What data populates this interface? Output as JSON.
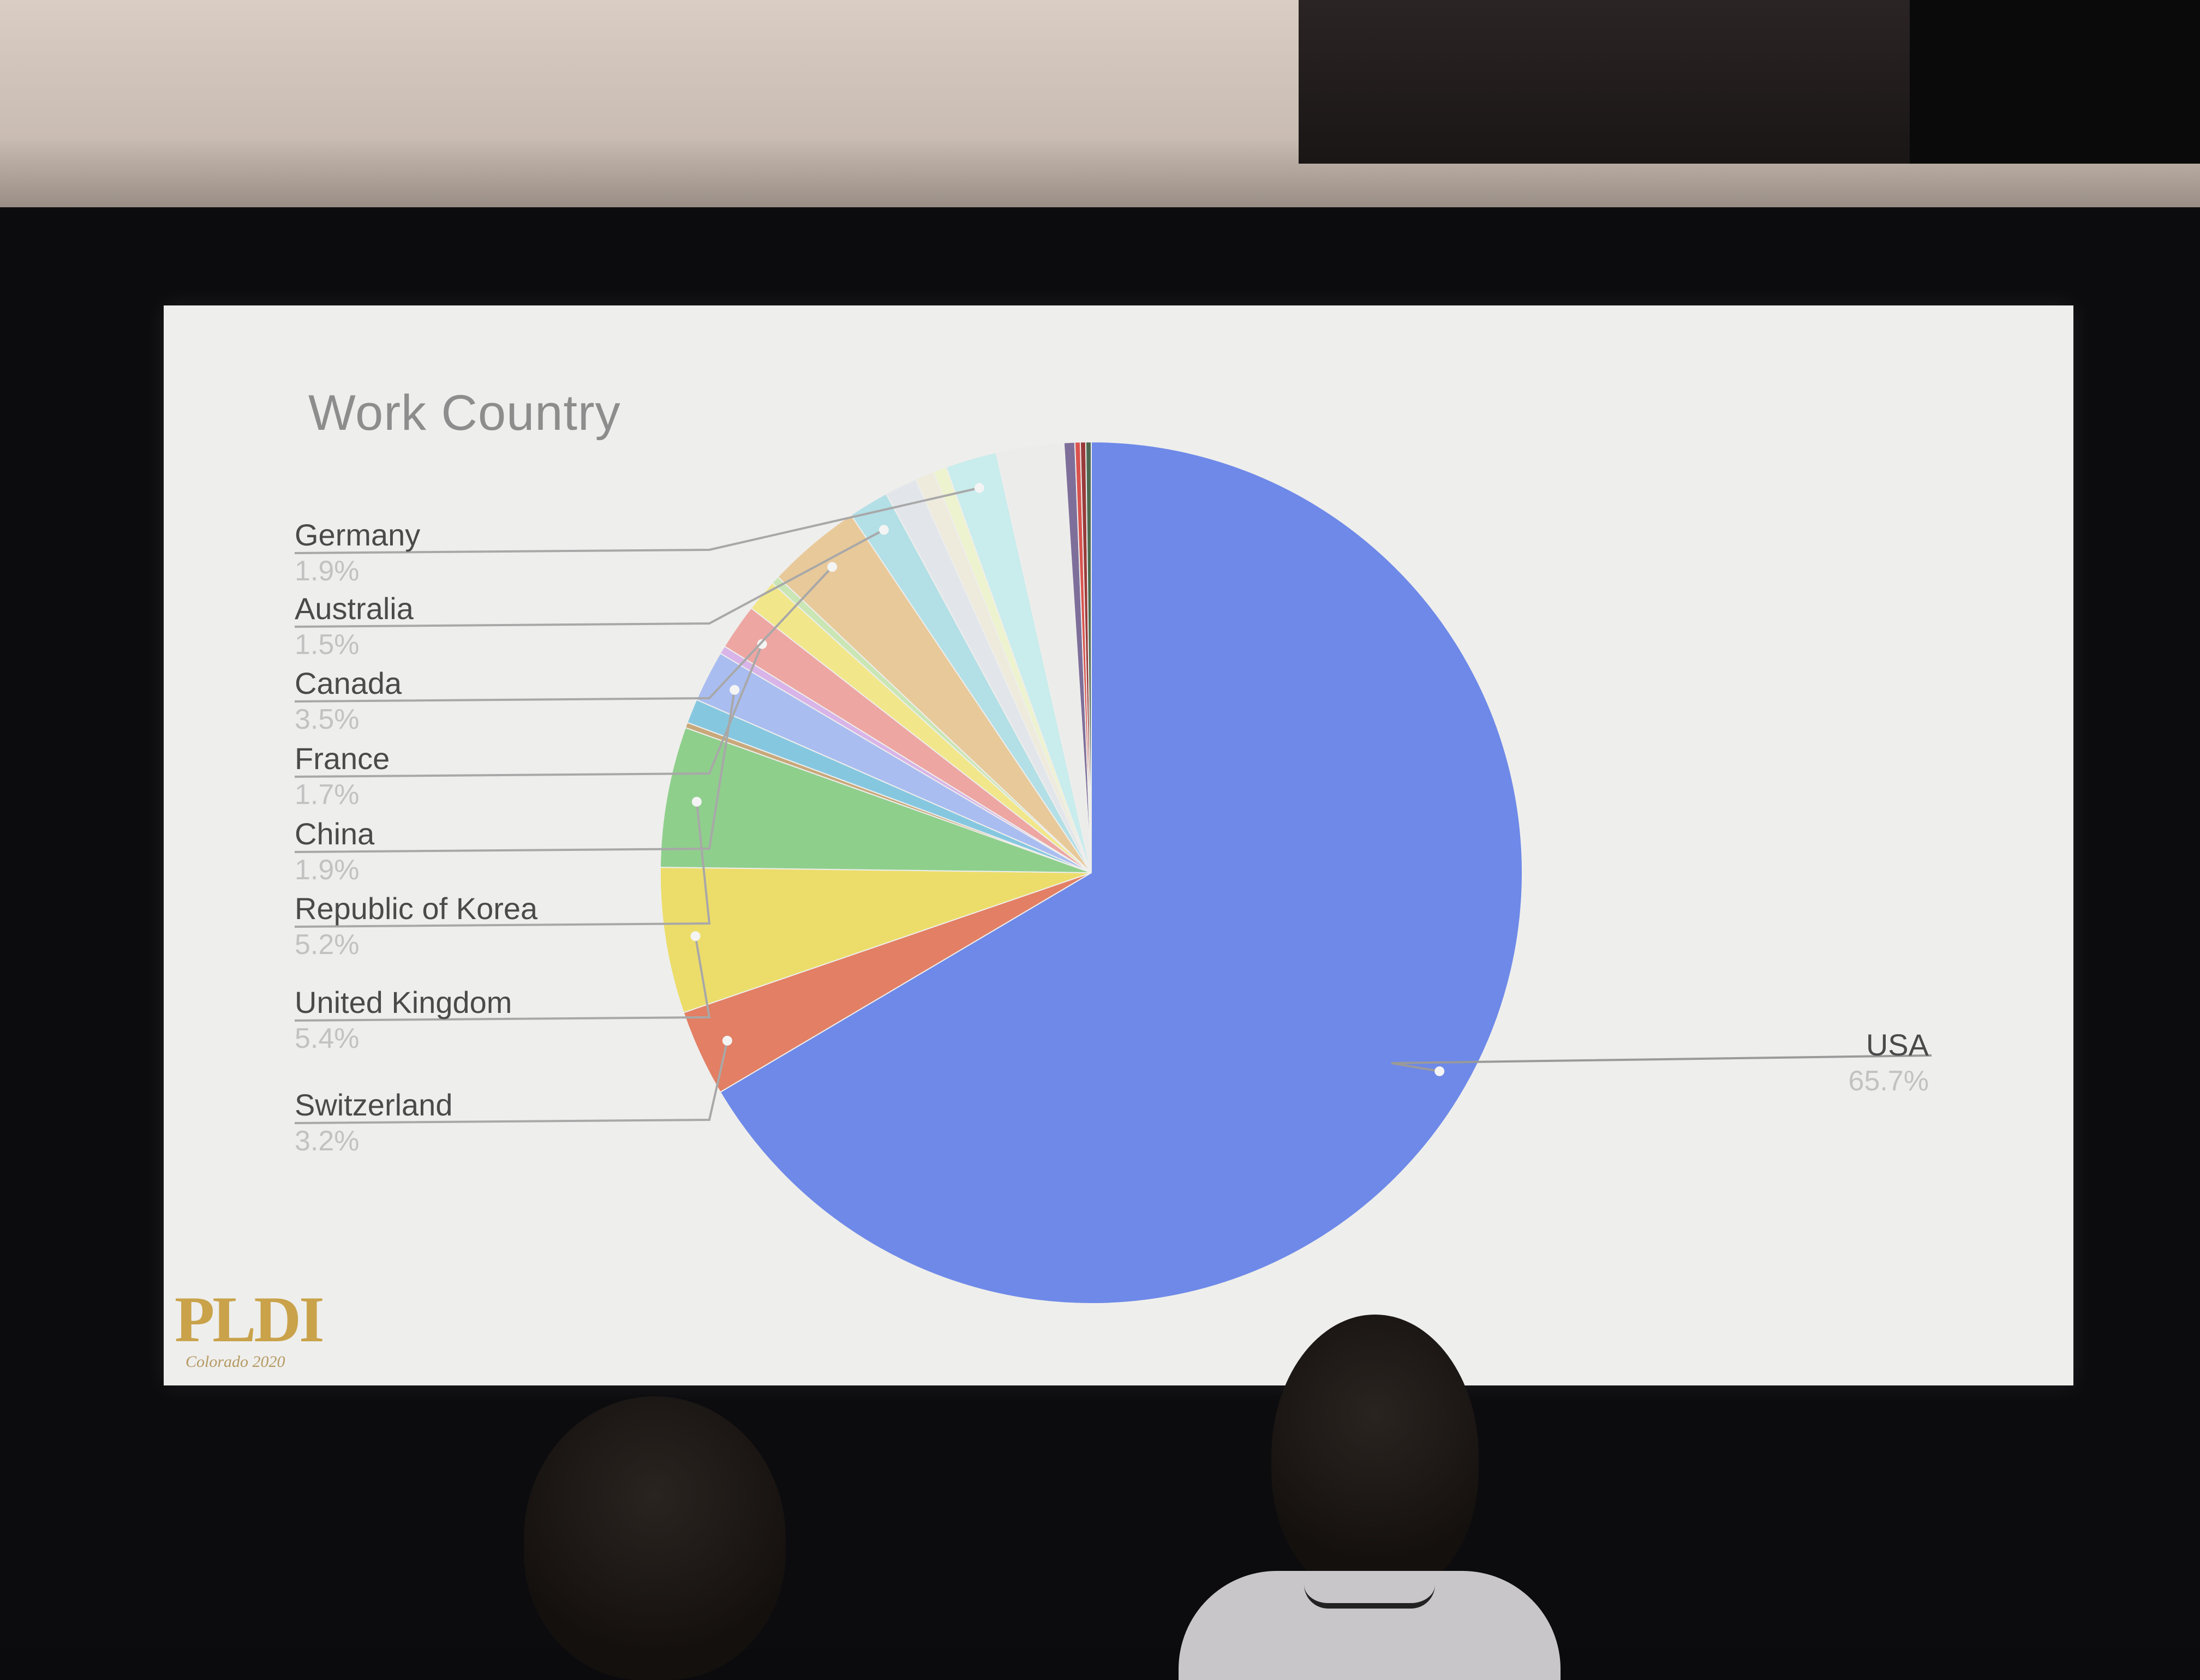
{
  "slide": {
    "title": "Work Country",
    "logo_text": "PLDI",
    "logo_subtitle": "Colorado 2020"
  },
  "chart_data": {
    "type": "pie",
    "title": "Work Country",
    "slices": [
      {
        "label": "USA",
        "value": 65.7,
        "color": "#6e89e8",
        "pct_label": "65.7%"
      },
      {
        "label": "Switzerland",
        "value": 3.2,
        "color": "#e27f64",
        "pct_label": "3.2%"
      },
      {
        "label": "United Kingdom",
        "value": 5.4,
        "color": "#ecdd6a",
        "pct_label": "5.4%"
      },
      {
        "label": "Republic of Korea",
        "value": 5.2,
        "color": "#8fcf8c",
        "pct_label": "5.2%"
      },
      {
        "label": "",
        "value": 0.2,
        "color": "#c8a87a"
      },
      {
        "label": "",
        "value": 0.9,
        "color": "#86c7e0"
      },
      {
        "label": "China",
        "value": 1.9,
        "color": "#a9bdf0",
        "pct_label": "1.9%"
      },
      {
        "label": "",
        "value": 0.3,
        "color": "#d8b4e8"
      },
      {
        "label": "France",
        "value": 1.7,
        "color": "#eda6a2",
        "pct_label": "1.7%"
      },
      {
        "label": "",
        "value": 1.2,
        "color": "#f1e78a"
      },
      {
        "label": "",
        "value": 0.3,
        "color": "#c9e6b4"
      },
      {
        "label": "Canada",
        "value": 3.5,
        "color": "#e8c99a",
        "pct_label": "3.5%"
      },
      {
        "label": "Australia",
        "value": 1.5,
        "color": "#b3dfe6",
        "pct_label": "1.5%"
      },
      {
        "label": "",
        "value": 1.2,
        "color": "#e2e6ea"
      },
      {
        "label": "",
        "value": 0.7,
        "color": "#eeeadc"
      },
      {
        "label": "",
        "value": 0.5,
        "color": "#eef3cf"
      },
      {
        "label": "Germany",
        "value": 1.9,
        "color": "#c9ecec",
        "pct_label": "1.9%"
      },
      {
        "label": "",
        "value": 2.5,
        "color": "#ececea"
      },
      {
        "label": "",
        "value": 0.4,
        "color": "#7e6f9a"
      },
      {
        "label": "",
        "value": 0.2,
        "color": "#d9534f"
      },
      {
        "label": "",
        "value": 0.2,
        "color": "#9a3b3b"
      },
      {
        "label": "",
        "value": 0.2,
        "color": "#4b6a52"
      }
    ],
    "legend": "callout-lines-left"
  }
}
